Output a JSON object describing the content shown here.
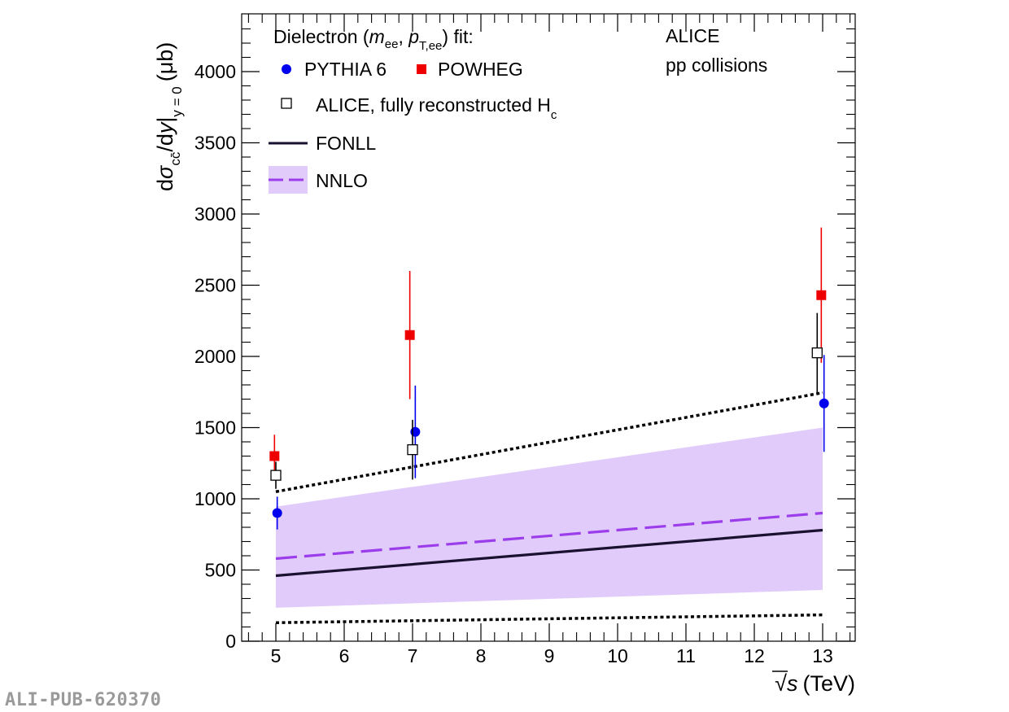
{
  "chart_data": {
    "type": "scatter",
    "title": "",
    "ylabel": "dσ_cc̄/dy|_{y=0} (μb)",
    "ylabel_parts": {
      "d": "d",
      "sigma": "σ",
      "sub": "cc̄",
      "dy": "/d",
      "y": "y",
      "ysub": "y = 0",
      "unit": "(μb)"
    },
    "xlabel": "√s (TeV)",
    "xlabel_parts": {
      "root": "√",
      "s": "s",
      "unit": "(TeV)"
    },
    "xlim": [
      4.5,
      13.5
    ],
    "ylim": [
      0,
      4400
    ],
    "x_ticks": [
      5,
      6,
      7,
      8,
      9,
      10,
      11,
      12,
      13
    ],
    "x_tick_labels": [
      "5",
      "6",
      "7",
      "8",
      "9",
      "10",
      "11",
      "12",
      "13"
    ],
    "y_ticks": [
      0,
      500,
      1000,
      1500,
      2000,
      2500,
      3000,
      3500,
      4000
    ],
    "y_tick_labels": [
      "0",
      "500",
      "1000",
      "1500",
      "2000",
      "2500",
      "3000",
      "3500",
      "4000"
    ],
    "series": [
      {
        "name": "PYTHIA 6",
        "marker": "circle",
        "color": "#0000ee",
        "points": [
          {
            "x": 5.02,
            "y": 900,
            "err": 115
          },
          {
            "x": 7.04,
            "y": 1470,
            "err": 325
          },
          {
            "x": 13.02,
            "y": 1670,
            "err": 340
          }
        ]
      },
      {
        "name": "POWHEG",
        "marker": "square",
        "color": "#ee0000",
        "points": [
          {
            "x": 4.98,
            "y": 1300,
            "err": 150
          },
          {
            "x": 6.96,
            "y": 2150,
            "err": 450
          },
          {
            "x": 12.98,
            "y": 2430,
            "err": 475
          }
        ]
      },
      {
        "name": "ALICE, fully reconstructed H_c",
        "marker": "open-square",
        "color": "#000000",
        "points": [
          {
            "x": 5.0,
            "y": 1165,
            "err": 95
          },
          {
            "x": 7.0,
            "y": 1345,
            "err": 210
          },
          {
            "x": 12.92,
            "y": 2025,
            "err": 280
          }
        ]
      }
    ],
    "fonll": {
      "color": "#1a1030",
      "central": [
        [
          5,
          460
        ],
        [
          13,
          780
        ]
      ],
      "upper": [
        [
          5,
          1050
        ],
        [
          13,
          1745
        ]
      ],
      "lower": [
        [
          5,
          130
        ],
        [
          13,
          185
        ]
      ]
    },
    "nnlo": {
      "color": "#9b3dea",
      "band_color": "#e1cbfa",
      "central": [
        [
          5,
          580
        ],
        [
          13,
          900
        ]
      ],
      "upper": [
        [
          5,
          945
        ],
        [
          13,
          1500
        ]
      ],
      "lower": [
        [
          5,
          235
        ],
        [
          13,
          360
        ]
      ]
    },
    "legend": {
      "header": "Dielectron (m_ee, p_T,ee) fit:",
      "header_parts": {
        "pre": "Dielectron (",
        "m": "m",
        "msub": "ee",
        "comma": ", ",
        "p": "p",
        "psub": "T,ee",
        "post": ") fit:"
      },
      "pythia": "PYTHIA 6",
      "powheg": "POWHEG",
      "alice": "ALICE, fully reconstructed H",
      "alice_sub": "c",
      "fonll": "FONLL",
      "nnlo": "NNLO"
    },
    "annotations": [
      "ALICE",
      "pp collisions"
    ]
  },
  "watermark": "ALI-PUB-620370"
}
